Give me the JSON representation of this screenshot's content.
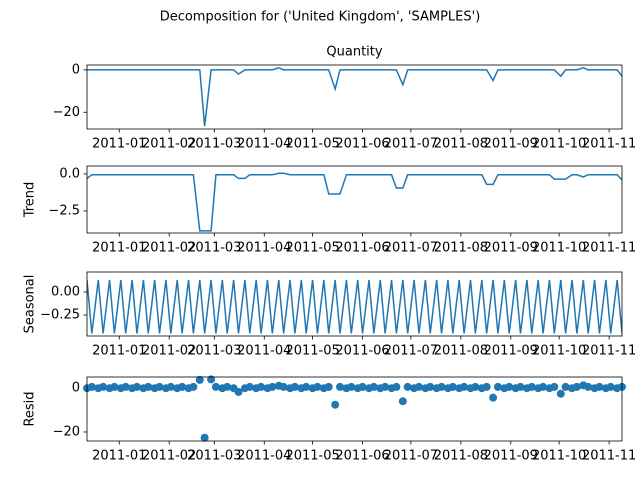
{
  "title": "Decomposition for ('United Kingdom', 'SAMPLES')",
  "chart_data": [
    {
      "type": "line",
      "title": "Quantity",
      "color": "#1f77b4",
      "x": [
        14955,
        14958,
        14962,
        14965,
        14969,
        14972,
        14976,
        14979,
        14983,
        14986,
        14990,
        14993,
        14997,
        15000,
        15004,
        15007,
        15011,
        15014,
        15018,
        15021,
        15025,
        15028,
        15032,
        15035,
        15039,
        15042,
        15046,
        15049,
        15053,
        15056,
        15060,
        15063,
        15067,
        15070,
        15074,
        15077,
        15081,
        15084,
        15088,
        15091,
        15095,
        15098,
        15102,
        15105,
        15109,
        15112,
        15116,
        15119,
        15123,
        15126,
        15130,
        15133,
        15137,
        15140,
        15144,
        15147,
        15151,
        15154,
        15158,
        15161,
        15165,
        15168,
        15172,
        15175,
        15179,
        15182,
        15186,
        15189,
        15193,
        15196,
        15200,
        15203,
        15207,
        15210,
        15214,
        15217,
        15221,
        15224,
        15228,
        15231,
        15235,
        15238,
        15242,
        15245,
        15249,
        15252,
        15256,
        15259,
        15263,
        15266,
        15270,
        15273,
        15277,
        15280,
        15284,
        15287
      ],
      "values": [
        0,
        0,
        0,
        0,
        0,
        0,
        0,
        0,
        0,
        0,
        0,
        0,
        0,
        0,
        0,
        0,
        0,
        0,
        0,
        0,
        0,
        -26.5,
        0,
        0,
        0,
        0,
        0,
        -2,
        0,
        0,
        0,
        0,
        0,
        0,
        1,
        0,
        0,
        0,
        0,
        0,
        0,
        0,
        0,
        0,
        -9,
        0,
        0,
        0,
        0,
        0,
        0,
        0,
        0,
        0,
        0,
        0,
        -7,
        0,
        0,
        0,
        0,
        0,
        0,
        0,
        0,
        0,
        0,
        0,
        0,
        0,
        0,
        0,
        -5,
        0,
        0,
        0,
        0,
        0,
        0,
        0,
        0,
        0,
        0,
        0,
        -3,
        0,
        0,
        0,
        1,
        0,
        0,
        0,
        0,
        0,
        0,
        -3
      ],
      "xlim": [
        14955,
        15287
      ],
      "xticks": [
        {
          "value": 14975,
          "label": "2011-01"
        },
        {
          "value": 15006,
          "label": "2011-02"
        },
        {
          "value": 15034,
          "label": "2011-03"
        },
        {
          "value": 15065,
          "label": "2011-04"
        },
        {
          "value": 15095,
          "label": "2011-05"
        },
        {
          "value": 15126,
          "label": "2011-06"
        },
        {
          "value": 15156,
          "label": "2011-07"
        },
        {
          "value": 15187,
          "label": "2011-08"
        },
        {
          "value": 15218,
          "label": "2011-09"
        },
        {
          "value": 15248,
          "label": "2011-10"
        },
        {
          "value": 15279,
          "label": "2011-11"
        }
      ],
      "ylim": [
        -27.9,
        2.3
      ],
      "yticks": [
        {
          "value": -20,
          "label": "−20"
        },
        0
      ]
    },
    {
      "type": "line",
      "ylabel": "Trend",
      "color": "#1f77b4",
      "x": [
        14955,
        14958,
        14962,
        14965,
        14969,
        14972,
        14976,
        14979,
        14983,
        14986,
        14990,
        14993,
        14997,
        15000,
        15004,
        15007,
        15011,
        15014,
        15018,
        15021,
        15025,
        15028,
        15032,
        15035,
        15039,
        15042,
        15046,
        15049,
        15053,
        15056,
        15060,
        15063,
        15067,
        15070,
        15074,
        15077,
        15081,
        15084,
        15088,
        15091,
        15095,
        15098,
        15102,
        15105,
        15109,
        15112,
        15116,
        15119,
        15123,
        15126,
        15130,
        15133,
        15137,
        15140,
        15144,
        15147,
        15151,
        15154,
        15158,
        15161,
        15165,
        15168,
        15172,
        15175,
        15179,
        15182,
        15186,
        15189,
        15193,
        15196,
        15200,
        15203,
        15207,
        15210,
        15214,
        15217,
        15221,
        15224,
        15228,
        15231,
        15235,
        15238,
        15242,
        15245,
        15249,
        15252,
        15256,
        15259,
        15263,
        15266,
        15270,
        15273,
        15277,
        15280,
        15284,
        15287
      ],
      "values": [
        -0.3,
        -0.05,
        -0.05,
        -0.05,
        -0.05,
        -0.05,
        -0.05,
        -0.05,
        -0.05,
        -0.05,
        -0.05,
        -0.05,
        -0.05,
        -0.05,
        -0.05,
        -0.05,
        -0.05,
        -0.05,
        -0.05,
        -0.05,
        -3.85,
        -3.85,
        -3.85,
        -0.05,
        -0.05,
        -0.05,
        -0.05,
        -0.3,
        -0.3,
        -0.05,
        -0.05,
        -0.05,
        -0.05,
        -0.05,
        0.05,
        0.05,
        -0.05,
        -0.05,
        -0.05,
        -0.05,
        -0.05,
        -0.05,
        -0.05,
        -1.35,
        -1.35,
        -1.35,
        -0.05,
        -0.05,
        -0.05,
        -0.05,
        -0.05,
        -0.05,
        -0.05,
        -0.05,
        -0.05,
        -0.95,
        -0.95,
        -0.05,
        -0.05,
        -0.05,
        -0.05,
        -0.05,
        -0.05,
        -0.05,
        -0.05,
        -0.05,
        -0.05,
        -0.05,
        -0.05,
        -0.05,
        -0.05,
        -0.7,
        -0.7,
        -0.05,
        -0.05,
        -0.05,
        -0.05,
        -0.05,
        -0.05,
        -0.05,
        -0.05,
        -0.05,
        -0.05,
        -0.35,
        -0.35,
        -0.35,
        -0.05,
        -0.05,
        -0.2,
        -0.05,
        -0.05,
        -0.05,
        -0.05,
        -0.05,
        -0.05,
        -0.4
      ],
      "xlim": [
        14955,
        15287
      ],
      "xticks": [
        {
          "value": 14975,
          "label": "2011-01"
        },
        {
          "value": 15006,
          "label": "2011-02"
        },
        {
          "value": 15034,
          "label": "2011-03"
        },
        {
          "value": 15065,
          "label": "2011-04"
        },
        {
          "value": 15095,
          "label": "2011-05"
        },
        {
          "value": 15126,
          "label": "2011-06"
        },
        {
          "value": 15156,
          "label": "2011-07"
        },
        {
          "value": 15187,
          "label": "2011-08"
        },
        {
          "value": 15218,
          "label": "2011-09"
        },
        {
          "value": 15248,
          "label": "2011-10"
        },
        {
          "value": 15279,
          "label": "2011-11"
        }
      ],
      "ylim": [
        -3.99,
        0.54
      ],
      "yticks": [
        {
          "value": -2.5,
          "label": "−2.5"
        },
        {
          "value": 0,
          "label": "0.0"
        }
      ]
    },
    {
      "type": "line",
      "ylabel": "Seasonal",
      "color": "#1f77b4",
      "x": [
        14955,
        14958,
        14962,
        14965,
        14969,
        14972,
        14976,
        14979,
        14983,
        14986,
        14990,
        14993,
        14997,
        15000,
        15004,
        15007,
        15011,
        15014,
        15018,
        15021,
        15025,
        15028,
        15032,
        15035,
        15039,
        15042,
        15046,
        15049,
        15053,
        15056,
        15060,
        15063,
        15067,
        15070,
        15074,
        15077,
        15081,
        15084,
        15088,
        15091,
        15095,
        15098,
        15102,
        15105,
        15109,
        15112,
        15116,
        15119,
        15123,
        15126,
        15130,
        15133,
        15137,
        15140,
        15144,
        15147,
        15151,
        15154,
        15158,
        15161,
        15165,
        15168,
        15172,
        15175,
        15179,
        15182,
        15186,
        15189,
        15193,
        15196,
        15200,
        15203,
        15207,
        15210,
        15214,
        15217,
        15221,
        15224,
        15228,
        15231,
        15235,
        15238,
        15242,
        15245,
        15249,
        15252,
        15256,
        15259,
        15263,
        15266,
        15270,
        15273,
        15277,
        15280,
        15284,
        15287
      ],
      "values": [
        0.13,
        -0.45,
        0.13,
        -0.45,
        0.13,
        -0.45,
        0.13,
        -0.45,
        0.13,
        -0.45,
        0.13,
        -0.45,
        0.13,
        -0.45,
        0.13,
        -0.45,
        0.13,
        -0.45,
        0.13,
        -0.45,
        0.13,
        -0.45,
        0.13,
        -0.45,
        0.13,
        -0.45,
        0.13,
        -0.45,
        0.13,
        -0.45,
        0.13,
        -0.45,
        0.13,
        -0.45,
        0.13,
        -0.45,
        0.13,
        -0.45,
        0.13,
        -0.45,
        0.13,
        -0.45,
        0.13,
        -0.45,
        0.13,
        -0.45,
        0.13,
        -0.45,
        0.13,
        -0.45,
        0.13,
        -0.45,
        0.13,
        -0.45,
        0.13,
        -0.45,
        0.13,
        -0.45,
        0.13,
        -0.45,
        0.13,
        -0.45,
        0.13,
        -0.45,
        0.13,
        -0.45,
        0.13,
        -0.45,
        0.13,
        -0.45,
        0.13,
        -0.45,
        0.13,
        -0.45,
        0.13,
        -0.45,
        0.13,
        -0.45,
        0.13,
        -0.45,
        0.13,
        -0.45,
        0.13,
        -0.45,
        0.13,
        -0.45,
        0.13,
        -0.45,
        0.13,
        -0.45,
        0.13,
        -0.45,
        0.13,
        -0.45,
        0.13,
        -0.45
      ],
      "xlim": [
        14955,
        15287
      ],
      "xticks": [
        {
          "value": 14975,
          "label": "2011-01"
        },
        {
          "value": 15006,
          "label": "2011-02"
        },
        {
          "value": 15034,
          "label": "2011-03"
        },
        {
          "value": 15065,
          "label": "2011-04"
        },
        {
          "value": 15095,
          "label": "2011-05"
        },
        {
          "value": 15126,
          "label": "2011-06"
        },
        {
          "value": 15156,
          "label": "2011-07"
        },
        {
          "value": 15187,
          "label": "2011-08"
        },
        {
          "value": 15218,
          "label": "2011-09"
        },
        {
          "value": 15248,
          "label": "2011-10"
        },
        {
          "value": 15279,
          "label": "2011-11"
        }
      ],
      "ylim": [
        -0.478,
        0.217
      ],
      "yticks": [
        {
          "value": -0.25,
          "label": "−0.25"
        },
        {
          "value": 0,
          "label": "0.00"
        }
      ]
    },
    {
      "type": "scatter",
      "ylabel": "Resid",
      "color": "#1f77b4",
      "x": [
        14955,
        14958,
        14962,
        14965,
        14969,
        14972,
        14976,
        14979,
        14983,
        14986,
        14990,
        14993,
        14997,
        15000,
        15004,
        15007,
        15011,
        15014,
        15018,
        15021,
        15025,
        15028,
        15032,
        15035,
        15039,
        15042,
        15046,
        15049,
        15053,
        15056,
        15060,
        15063,
        15067,
        15070,
        15074,
        15077,
        15081,
        15084,
        15088,
        15091,
        15095,
        15098,
        15102,
        15105,
        15109,
        15112,
        15116,
        15119,
        15123,
        15126,
        15130,
        15133,
        15137,
        15140,
        15144,
        15147,
        15151,
        15154,
        15158,
        15161,
        15165,
        15168,
        15172,
        15175,
        15179,
        15182,
        15186,
        15189,
        15193,
        15196,
        15200,
        15203,
        15207,
        15210,
        15214,
        15217,
        15221,
        15224,
        15228,
        15231,
        15235,
        15238,
        15242,
        15245,
        15249,
        15252,
        15256,
        15259,
        15263,
        15266,
        15270,
        15273,
        15277,
        15280,
        15284,
        15287
      ],
      "values": [
        -0.1,
        0.5,
        -0.1,
        0.5,
        -0.1,
        0.5,
        -0.1,
        0.5,
        -0.1,
        0.5,
        -0.1,
        0.5,
        -0.1,
        0.5,
        -0.1,
        0.5,
        -0.1,
        0.5,
        -0.1,
        0.5,
        3.7,
        -22.6,
        3.9,
        0.5,
        -0.1,
        0.5,
        -0.1,
        -1.8,
        -0.1,
        0.5,
        -0.1,
        0.5,
        -0.1,
        0.5,
        1,
        0.5,
        -0.1,
        0.5,
        -0.1,
        0.5,
        -0.1,
        0.5,
        -0.1,
        0.5,
        -7.6,
        0.5,
        -0.1,
        0.5,
        -0.1,
        0.5,
        -0.1,
        0.5,
        -0.1,
        0.5,
        -0.1,
        0.5,
        -6,
        0.5,
        -0.1,
        0.5,
        -0.1,
        0.5,
        -0.1,
        0.5,
        -0.1,
        0.5,
        -0.1,
        0.5,
        -0.1,
        0.5,
        -0.1,
        0.5,
        -4.4,
        0.5,
        -0.1,
        0.5,
        -0.1,
        0.5,
        -0.1,
        0.5,
        -0.1,
        0.5,
        -0.1,
        0.5,
        -2.6,
        0.5,
        -0.1,
        0.5,
        1.2,
        0.5,
        -0.1,
        0.5,
        -0.1,
        0.5,
        -0.1,
        0.5
      ],
      "xlim": [
        14955,
        15287
      ],
      "xticks": [
        {
          "value": 14975,
          "label": "2011-01"
        },
        {
          "value": 15006,
          "label": "2011-02"
        },
        {
          "value": 15034,
          "label": "2011-03"
        },
        {
          "value": 15065,
          "label": "2011-04"
        },
        {
          "value": 15095,
          "label": "2011-05"
        },
        {
          "value": 15126,
          "label": "2011-06"
        },
        {
          "value": 15156,
          "label": "2011-07"
        },
        {
          "value": 15187,
          "label": "2011-08"
        },
        {
          "value": 15218,
          "label": "2011-09"
        },
        {
          "value": 15248,
          "label": "2011-10"
        },
        {
          "value": 15279,
          "label": "2011-11"
        }
      ],
      "ylim": [
        -24.1,
        5
      ],
      "yticks": [
        {
          "value": -20,
          "label": "−20"
        },
        0
      ]
    }
  ]
}
